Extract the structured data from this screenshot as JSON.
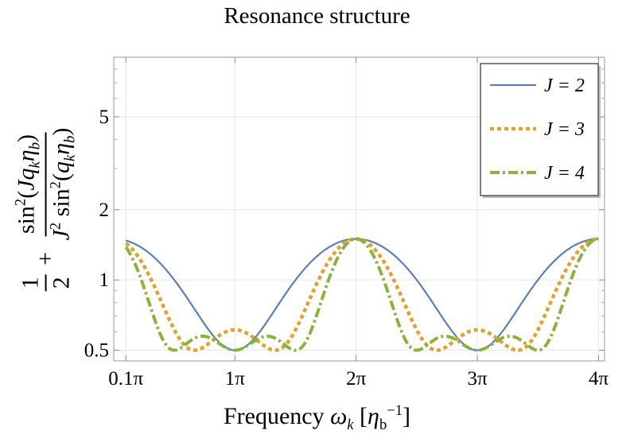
{
  "chart_data": {
    "type": "line",
    "title": "Resonance structure",
    "xlabel": "Frequency ω_k [η_b^-1]",
    "ylabel": "1/2 + sin²(J q_k η_b) / (J² sin²(q_k η_b))",
    "x_ticks": [
      {
        "value": 0.1,
        "label": "0.1π"
      },
      {
        "value": 1,
        "label": "1π"
      },
      {
        "value": 2,
        "label": "2π"
      },
      {
        "value": 3,
        "label": "3π"
      },
      {
        "value": 4,
        "label": "4π"
      }
    ],
    "y_ticks": [
      {
        "value": 0.5,
        "label": "0.5"
      },
      {
        "value": 1,
        "label": "1"
      },
      {
        "value": 2,
        "label": "2"
      },
      {
        "value": 5,
        "label": "5"
      }
    ],
    "x_unit": "π",
    "xlim": [
      0,
      4.05
    ],
    "ylim": [
      0.45,
      9.0
    ],
    "y_scale": "log",
    "grid": true,
    "legend_position": "top-right",
    "series": [
      {
        "name": "J = 2",
        "J": 2,
        "color": "#5b7fb8",
        "style": "solid"
      },
      {
        "name": "J = 3",
        "J": 3,
        "color": "#e3a12f",
        "style": "dotted"
      },
      {
        "name": "J = 4",
        "J": 4,
        "color": "#8bb33a",
        "style": "dash-dot"
      }
    ]
  }
}
